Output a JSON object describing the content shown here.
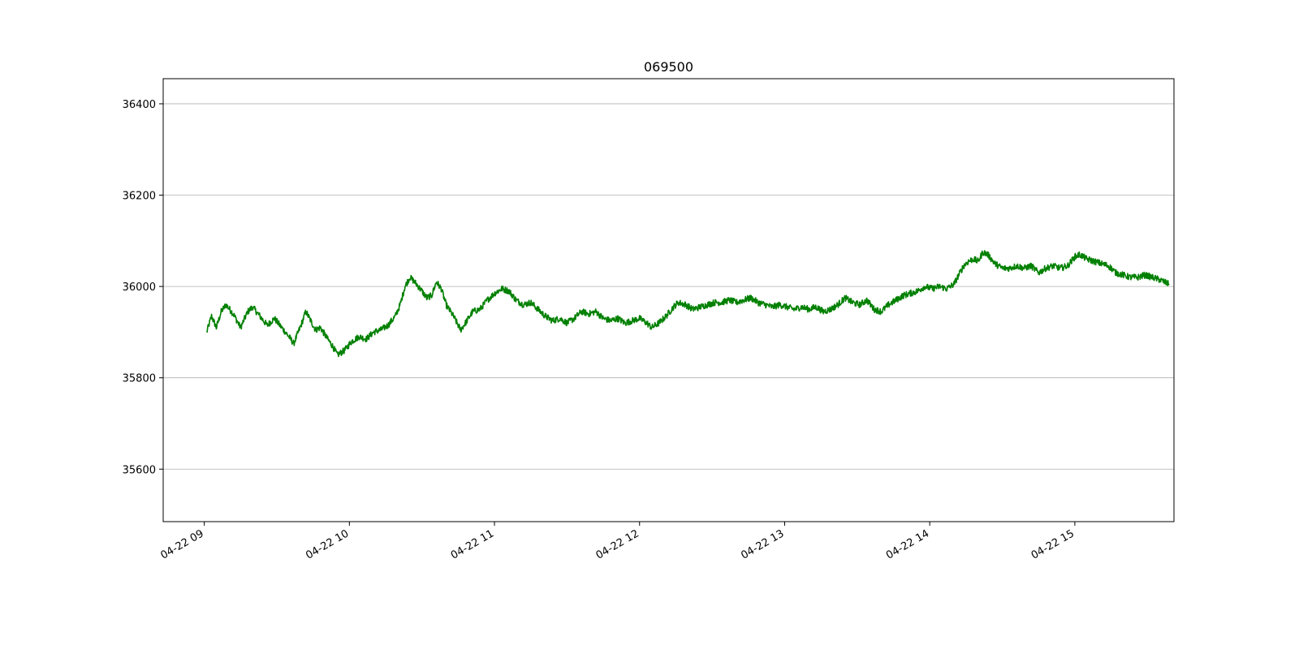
{
  "chart_data": {
    "type": "line",
    "title": "069500",
    "xlabel": "",
    "ylabel": "",
    "x_axis": {
      "type": "time",
      "range": [
        "04-22 08:43",
        "04-22 15:41"
      ],
      "ticks": [
        "04-22 09",
        "04-22 10",
        "04-22 11",
        "04-22 12",
        "04-22 13",
        "04-22 14",
        "04-22 15"
      ]
    },
    "y_axis": {
      "range": [
        35485,
        36455
      ],
      "ticks": [
        35600,
        35800,
        36000,
        36200,
        36400
      ]
    },
    "grid": {
      "x": false,
      "y": true
    },
    "legend": "none",
    "series": [
      {
        "color": "#008000",
        "points": [
          [
            "09:01",
            35900
          ],
          [
            "09:03",
            35935
          ],
          [
            "09:05",
            35910
          ],
          [
            "09:07",
            35945
          ],
          [
            "09:09",
            35960
          ],
          [
            "09:12",
            35940
          ],
          [
            "09:15",
            35910
          ],
          [
            "09:18",
            35945
          ],
          [
            "09:20",
            35955
          ],
          [
            "09:23",
            35935
          ],
          [
            "09:26",
            35915
          ],
          [
            "09:29",
            35930
          ],
          [
            "09:32",
            35910
          ],
          [
            "09:35",
            35890
          ],
          [
            "09:37",
            35875
          ],
          [
            "09:40",
            35915
          ],
          [
            "09:42",
            35945
          ],
          [
            "09:44",
            35925
          ],
          [
            "09:46",
            35905
          ],
          [
            "09:48",
            35910
          ],
          [
            "09:51",
            35885
          ],
          [
            "09:53",
            35870
          ],
          [
            "09:55",
            35850
          ],
          [
            "09:58",
            35860
          ],
          [
            "10:01",
            35880
          ],
          [
            "10:04",
            35890
          ],
          [
            "10:07",
            35885
          ],
          [
            "10:10",
            35900
          ],
          [
            "10:13",
            35905
          ],
          [
            "10:16",
            35915
          ],
          [
            "10:19",
            35935
          ],
          [
            "10:21",
            35960
          ],
          [
            "10:23",
            36000
          ],
          [
            "10:25",
            36020
          ],
          [
            "10:27",
            36010
          ],
          [
            "10:30",
            35990
          ],
          [
            "10:32",
            35975
          ],
          [
            "10:34",
            35980
          ],
          [
            "10:36",
            36010
          ],
          [
            "10:38",
            35995
          ],
          [
            "10:40",
            35960
          ],
          [
            "10:43",
            35935
          ],
          [
            "10:46",
            35905
          ],
          [
            "10:48",
            35920
          ],
          [
            "10:51",
            35945
          ],
          [
            "10:54",
            35950
          ],
          [
            "10:57",
            35970
          ],
          [
            "11:00",
            35985
          ],
          [
            "11:03",
            35995
          ],
          [
            "11:06",
            35990
          ],
          [
            "11:09",
            35970
          ],
          [
            "11:12",
            35960
          ],
          [
            "11:15",
            35965
          ],
          [
            "11:18",
            35950
          ],
          [
            "11:21",
            35935
          ],
          [
            "11:24",
            35925
          ],
          [
            "11:27",
            35930
          ],
          [
            "11:30",
            35920
          ],
          [
            "11:33",
            35930
          ],
          [
            "11:36",
            35945
          ],
          [
            "11:39",
            35940
          ],
          [
            "11:42",
            35945
          ],
          [
            "11:45",
            35930
          ],
          [
            "11:48",
            35925
          ],
          [
            "11:51",
            35930
          ],
          [
            "11:54",
            35920
          ],
          [
            "11:57",
            35925
          ],
          [
            "12:00",
            35930
          ],
          [
            "12:03",
            35920
          ],
          [
            "12:05",
            35910
          ],
          [
            "12:08",
            35920
          ],
          [
            "12:11",
            35935
          ],
          [
            "12:14",
            35955
          ],
          [
            "12:16",
            35965
          ],
          [
            "12:19",
            35960
          ],
          [
            "12:22",
            35950
          ],
          [
            "12:25",
            35955
          ],
          [
            "12:28",
            35960
          ],
          [
            "12:31",
            35965
          ],
          [
            "12:34",
            35965
          ],
          [
            "12:37",
            35970
          ],
          [
            "12:40",
            35965
          ],
          [
            "12:43",
            35970
          ],
          [
            "12:46",
            35975
          ],
          [
            "12:49",
            35965
          ],
          [
            "12:52",
            35960
          ],
          [
            "12:55",
            35955
          ],
          [
            "12:58",
            35960
          ],
          [
            "13:01",
            35955
          ],
          [
            "13:04",
            35950
          ],
          [
            "13:07",
            35955
          ],
          [
            "13:10",
            35950
          ],
          [
            "13:13",
            35955
          ],
          [
            "13:16",
            35945
          ],
          [
            "13:19",
            35950
          ],
          [
            "13:22",
            35960
          ],
          [
            "13:25",
            35975
          ],
          [
            "13:28",
            35965
          ],
          [
            "13:31",
            35960
          ],
          [
            "13:34",
            35970
          ],
          [
            "13:37",
            35950
          ],
          [
            "13:40",
            35945
          ],
          [
            "13:43",
            35960
          ],
          [
            "13:46",
            35970
          ],
          [
            "13:49",
            35980
          ],
          [
            "13:52",
            35985
          ],
          [
            "13:55",
            35990
          ],
          [
            "13:58",
            36000
          ],
          [
            "14:01",
            35995
          ],
          [
            "14:04",
            36000
          ],
          [
            "14:07",
            35995
          ],
          [
            "14:10",
            36005
          ],
          [
            "14:12",
            36025
          ],
          [
            "14:14",
            36045
          ],
          [
            "14:16",
            36055
          ],
          [
            "14:18",
            36060
          ],
          [
            "14:20",
            36055
          ],
          [
            "14:22",
            36075
          ],
          [
            "14:24",
            36070
          ],
          [
            "14:27",
            36050
          ],
          [
            "14:30",
            36040
          ],
          [
            "14:33",
            36040
          ],
          [
            "14:36",
            36045
          ],
          [
            "14:39",
            36040
          ],
          [
            "14:42",
            36045
          ],
          [
            "14:45",
            36030
          ],
          [
            "14:48",
            36040
          ],
          [
            "14:51",
            36045
          ],
          [
            "14:54",
            36040
          ],
          [
            "14:57",
            36045
          ],
          [
            "15:00",
            36065
          ],
          [
            "15:02",
            36070
          ],
          [
            "15:05",
            36060
          ],
          [
            "15:08",
            36055
          ],
          [
            "15:11",
            36050
          ],
          [
            "15:14",
            36045
          ],
          [
            "15:17",
            36030
          ],
          [
            "15:20",
            36025
          ],
          [
            "15:23",
            36020
          ],
          [
            "15:26",
            36020
          ],
          [
            "15:29",
            36025
          ],
          [
            "15:32",
            36020
          ],
          [
            "15:35",
            36015
          ],
          [
            "15:37",
            36010
          ],
          [
            "15:39",
            36005
          ]
        ]
      }
    ]
  }
}
